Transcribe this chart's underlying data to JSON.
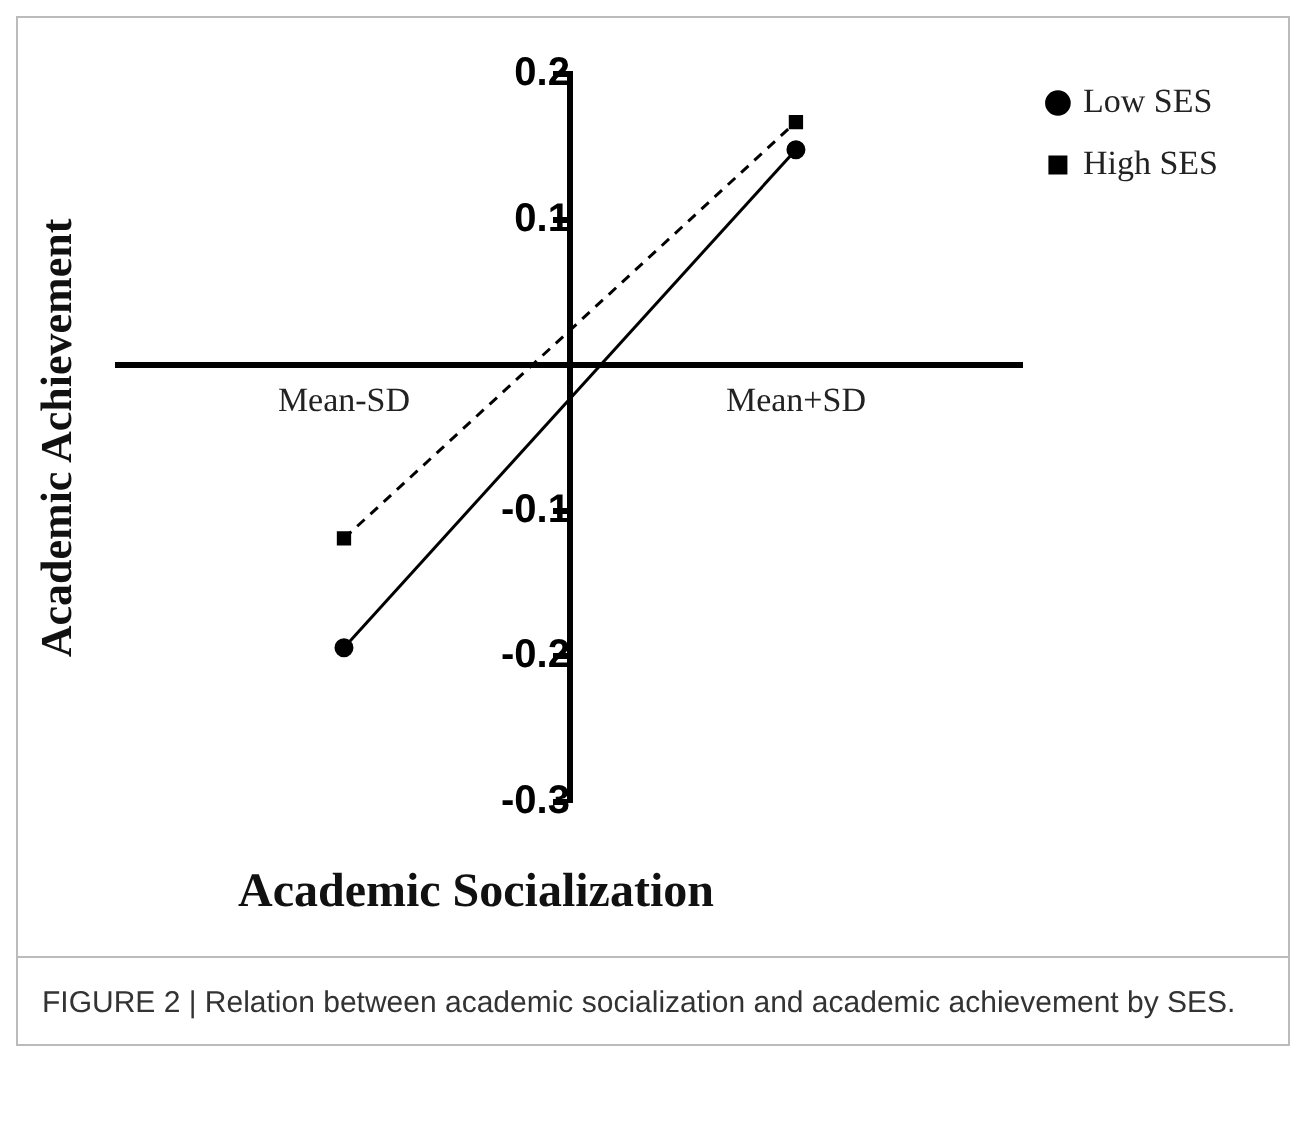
{
  "chart_data": {
    "type": "line",
    "xlabel": "Academic Socialization",
    "ylabel": "Academic Achievement",
    "annotations": [
      "FIGURE 2 | Relation between academic socialization and academic achievement by SES."
    ],
    "categories": [
      "Mean-SD",
      "Mean+SD"
    ],
    "series": [
      {
        "name": "Low SES",
        "color": "#000000",
        "values": [
          -0.194,
          0.148
        ],
        "marker": "circle",
        "line_style": "solid"
      },
      {
        "name": "High SES",
        "color": "#000000",
        "values": [
          -0.119,
          0.167
        ],
        "marker": "square",
        "line_style": "dashed"
      }
    ],
    "ylim": [
      -0.3,
      0.2
    ],
    "yticks": [
      -0.3,
      -0.2,
      -0.1,
      0.1,
      0.2
    ],
    "grid": false,
    "legend": "top right"
  }
}
